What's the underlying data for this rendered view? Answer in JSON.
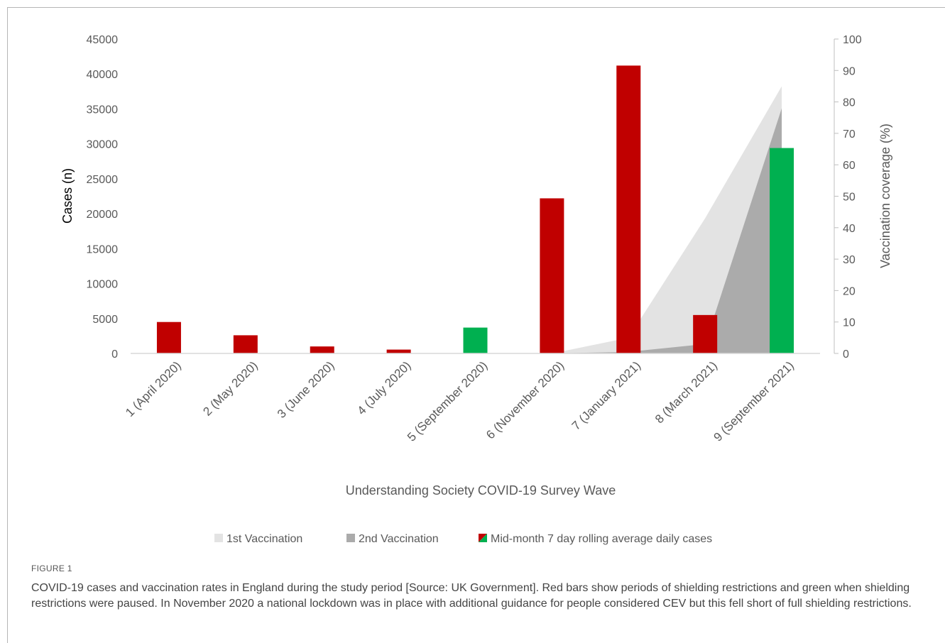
{
  "chart_data": {
    "type": "bar",
    "categories": [
      "1 (April 2020)",
      "2 (May 2020)",
      "3 (June 2020)",
      "4 (July 2020)",
      "5 (September 2020)",
      "6 (November 2020)",
      "7 (January 2021)",
      "8 (March 2021)",
      "9 (September 2021)"
    ],
    "series": [
      {
        "name": "Mid-month 7 day rolling average daily cases",
        "kind": "bar",
        "axis": "left",
        "values": [
          4500,
          2600,
          1000,
          550,
          3700,
          22200,
          41200,
          5500,
          29400
        ],
        "bar_colors": [
          "#c00000",
          "#c00000",
          "#c00000",
          "#c00000",
          "#00b050",
          "#c00000",
          "#c00000",
          "#c00000",
          "#00b050"
        ]
      },
      {
        "name": "1st Vaccination",
        "kind": "area",
        "axis": "right",
        "color": "#e3e3e3",
        "values": [
          0,
          0,
          0,
          0,
          0,
          0,
          5,
          43,
          85
        ]
      },
      {
        "name": "2nd Vaccination",
        "kind": "area",
        "axis": "right",
        "color": "#ababab",
        "values": [
          0,
          0,
          0,
          0,
          0,
          0,
          0.5,
          3,
          78
        ]
      }
    ],
    "xlabel": "Understanding Society COVID-19 Survey Wave",
    "ylabel": "Cases (n)",
    "y2label": "Vaccination coverage (%)",
    "ylim": [
      0,
      45000
    ],
    "y2lim": [
      0,
      100
    ],
    "yticks": [
      "0",
      "5000",
      "10000",
      "15000",
      "20000",
      "25000",
      "30000",
      "35000",
      "40000",
      "45000"
    ],
    "y2ticks": [
      "0",
      "10",
      "20",
      "30",
      "40",
      "50",
      "60",
      "70",
      "80",
      "90",
      "100"
    ],
    "legend": {
      "position": "bottom",
      "items": [
        {
          "label": "1st Vaccination",
          "color": "#e3e3e3"
        },
        {
          "label": "2nd Vaccination",
          "color": "#ababab"
        },
        {
          "label": "Mid-month 7 day rolling average daily cases",
          "colors": [
            "#c00000",
            "#00b050"
          ]
        }
      ]
    },
    "grid": false
  },
  "caption": {
    "label": "FIGURE 1",
    "text": "COVID-19 cases and vaccination rates in England during the study period [Source: UK Government]. Red bars show periods of shielding restrictions and green when shielding restrictions were paused. In November 2020 a national lockdown was in place with additional guidance for people considered CEV but this fell short of full shielding restrictions."
  }
}
